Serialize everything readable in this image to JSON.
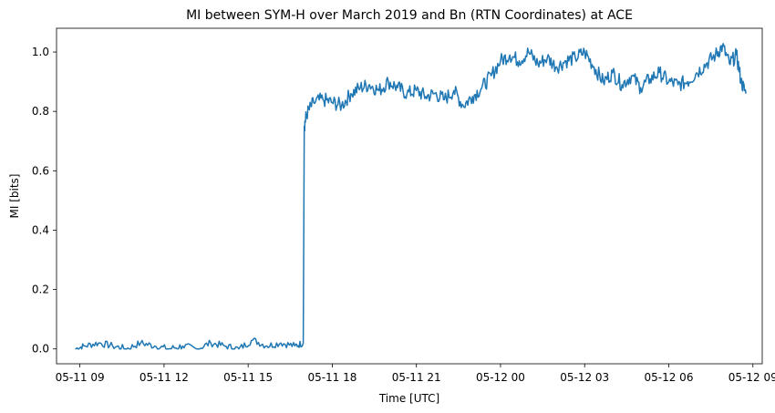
{
  "chart_data": {
    "type": "line",
    "title": "MI between SYM-H over March 2019 and Bn (RTN Coordinates) at ACE",
    "xlabel": "Time [UTC]",
    "ylabel": "MI [bits]",
    "x_ticks": [
      "05-11 09",
      "05-11 12",
      "05-11 15",
      "05-11 18",
      "05-11 21",
      "05-12 00",
      "05-12 03",
      "05-12 06",
      "05-12 09"
    ],
    "x_tick_times": [
      "2019-05-11 09:00",
      "2019-05-11 12:00",
      "2019-05-11 15:00",
      "2019-05-11 18:00",
      "2019-05-11 21:00",
      "2019-05-12 00:00",
      "2019-05-12 03:00",
      "2019-05-12 06:00",
      "2019-05-12 09:00"
    ],
    "xlim": [
      "2019-05-11 08:10",
      "2019-05-12 09:20"
    ],
    "y_ticks": [
      "0.0",
      "0.2",
      "0.4",
      "0.6",
      "0.8",
      "1.0"
    ],
    "ylim": [
      -0.05,
      1.08
    ],
    "grid": false,
    "color": "#1f77b4",
    "series": [
      {
        "x": [
          "2019-05-11 08:50",
          "2019-05-11 09:10",
          "2019-05-11 09:40",
          "2019-05-11 10:10",
          "2019-05-11 10:40",
          "2019-05-11 11:10",
          "2019-05-11 11:40",
          "2019-05-11 12:10",
          "2019-05-11 12:40",
          "2019-05-11 13:10",
          "2019-05-11 13:40",
          "2019-05-11 14:10",
          "2019-05-11 14:40",
          "2019-05-11 15:10",
          "2019-05-11 15:40",
          "2019-05-11 16:10",
          "2019-05-11 16:40",
          "2019-05-11 16:58",
          "2019-05-11 17:00",
          "2019-05-11 17:05",
          "2019-05-11 17:20",
          "2019-05-11 17:40",
          "2019-05-11 18:00",
          "2019-05-11 18:20",
          "2019-05-11 18:40",
          "2019-05-11 19:00",
          "2019-05-11 19:20",
          "2019-05-11 19:40",
          "2019-05-11 20:00",
          "2019-05-11 20:20",
          "2019-05-11 20:40",
          "2019-05-11 21:00",
          "2019-05-11 21:20",
          "2019-05-11 21:40",
          "2019-05-11 22:00",
          "2019-05-11 22:20",
          "2019-05-11 22:40",
          "2019-05-11 23:00",
          "2019-05-11 23:20",
          "2019-05-11 23:40",
          "2019-05-12 00:00",
          "2019-05-12 00:20",
          "2019-05-12 00:40",
          "2019-05-12 01:00",
          "2019-05-12 01:20",
          "2019-05-12 01:40",
          "2019-05-12 02:00",
          "2019-05-12 02:20",
          "2019-05-12 02:40",
          "2019-05-12 03:00",
          "2019-05-12 03:20",
          "2019-05-12 03:40",
          "2019-05-12 04:00",
          "2019-05-12 04:20",
          "2019-05-12 04:40",
          "2019-05-12 05:00",
          "2019-05-12 05:20",
          "2019-05-12 05:40",
          "2019-05-12 06:00",
          "2019-05-12 06:20",
          "2019-05-12 06:40",
          "2019-05-12 07:00",
          "2019-05-12 07:20",
          "2019-05-12 07:40",
          "2019-05-12 07:55",
          "2019-05-12 08:10",
          "2019-05-12 08:25",
          "2019-05-12 08:35",
          "2019-05-12 08:45"
        ],
        "y": [
          0.0,
          0.01,
          0.02,
          0.01,
          0.0,
          0.02,
          0.01,
          0.0,
          0.01,
          0.0,
          0.02,
          0.01,
          0.0,
          0.03,
          0.01,
          0.02,
          0.01,
          0.02,
          0.75,
          0.79,
          0.83,
          0.84,
          0.83,
          0.82,
          0.86,
          0.88,
          0.89,
          0.87,
          0.9,
          0.88,
          0.86,
          0.87,
          0.85,
          0.86,
          0.84,
          0.87,
          0.82,
          0.85,
          0.88,
          0.92,
          0.97,
          0.99,
          0.97,
          1.0,
          0.96,
          0.98,
          0.95,
          0.97,
          0.98,
          1.0,
          0.95,
          0.9,
          0.93,
          0.89,
          0.92,
          0.88,
          0.91,
          0.93,
          0.9,
          0.89,
          0.9,
          0.93,
          0.96,
          0.99,
          1.02,
          0.96,
          0.99,
          0.9,
          0.86
        ]
      }
    ]
  }
}
